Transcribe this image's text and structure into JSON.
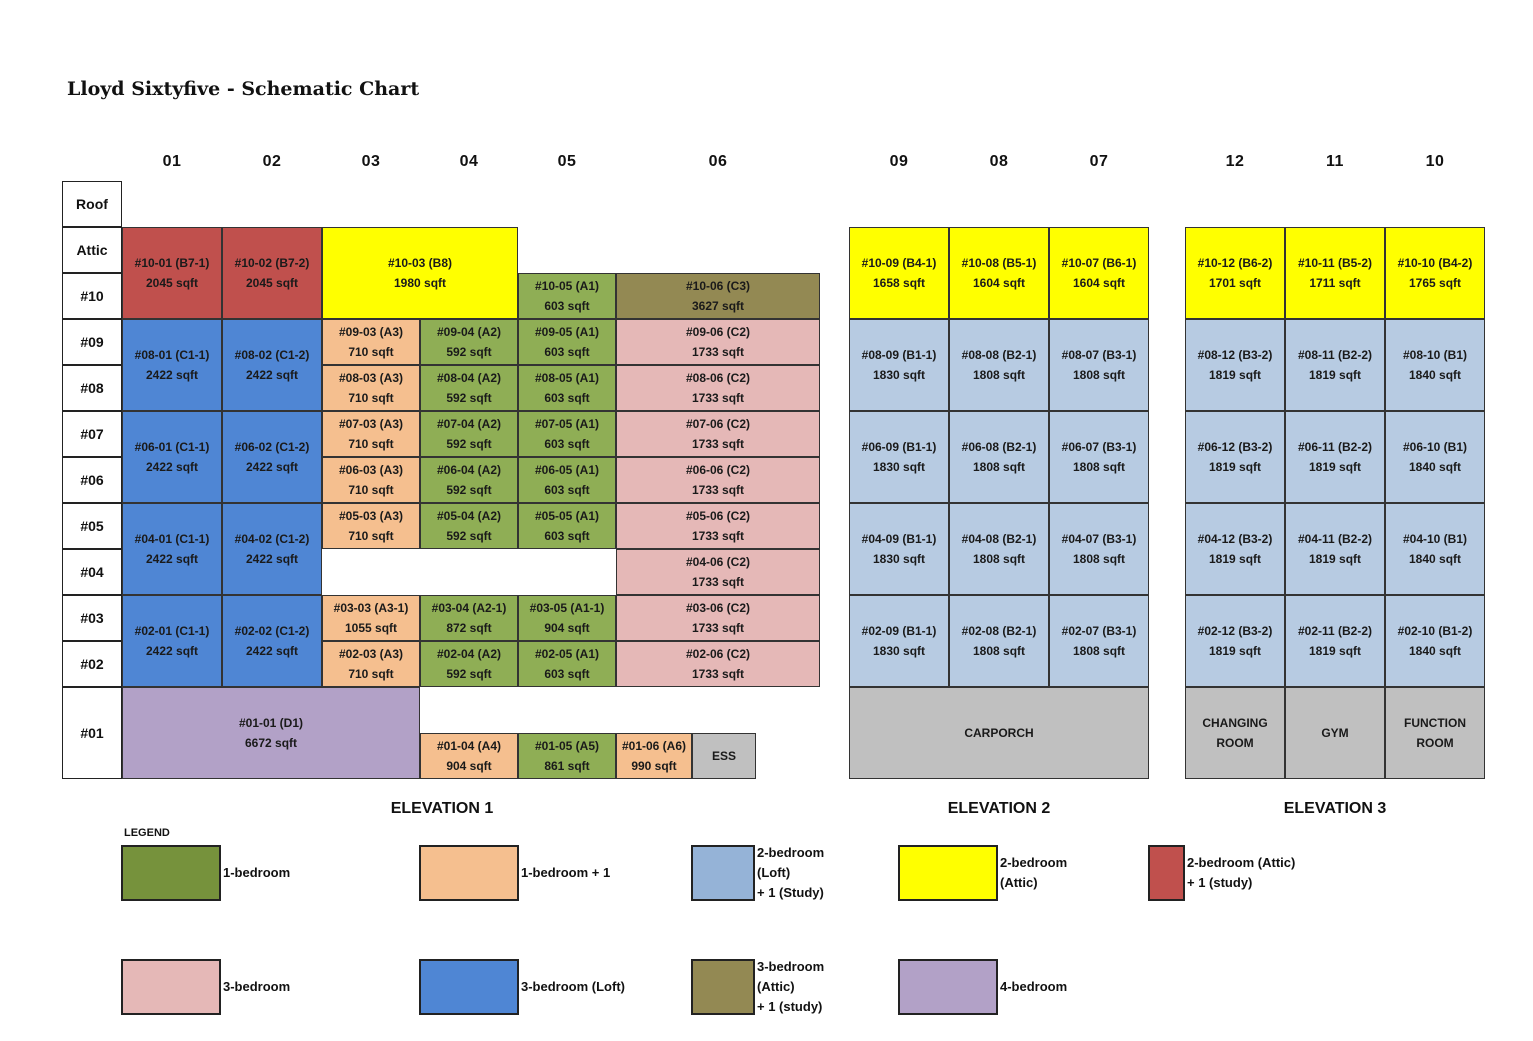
{
  "title": "Lloyd Sixtyfive - Schematic Chart",
  "colors": {
    "one_bedroom": "#8FAE55",
    "one_bedroom_plus1": "#F5BF8F",
    "two_bedroom_loft": "#B7CBE2",
    "two_bedroom_attic": "#FFFF00",
    "two_bedroom_attic_study": "#C0504D",
    "three_bedroom": "#E5B8B7",
    "three_bedroom_loft": "#4F86D4",
    "three_bedroom_attic_study": "#938953",
    "four_bedroom": "#B2A1C7",
    "facility": "#C0C0C0",
    "legend_one_bedroom": "#76923C",
    "legend_two_bedroom_loft": "#95B3D7"
  },
  "column_headers": [
    "01",
    "02",
    "03",
    "04",
    "05",
    "06",
    "09",
    "08",
    "07",
    "12",
    "11",
    "10"
  ],
  "row_labels": [
    "Roof",
    "Attic",
    "#10",
    "#09",
    "#08",
    "#07",
    "#06",
    "#05",
    "#04",
    "#03",
    "#02",
    "#01"
  ],
  "elevations": [
    "ELEVATION 1",
    "ELEVATION 2",
    "ELEVATION 3"
  ],
  "units": {
    "u10_01": {
      "l1": "#10-01 (B7-1)",
      "l2": "2045 sqft"
    },
    "u10_02": {
      "l1": "#10-02 (B7-2)",
      "l2": "2045 sqft"
    },
    "u10_03": {
      "l1": "#10-03 (B8)",
      "l2": "1980 sqft"
    },
    "u10_05": {
      "l1": "#10-05 (A1)",
      "l2": "603 sqft"
    },
    "u10_06": {
      "l1": "#10-06 (C3)",
      "l2": "3627 sqft"
    },
    "u08_01": {
      "l1": "#08-01 (C1-1)",
      "l2": "2422 sqft"
    },
    "u08_02": {
      "l1": "#08-02 (C1-2)",
      "l2": "2422 sqft"
    },
    "u06_01": {
      "l1": "#06-01 (C1-1)",
      "l2": "2422 sqft"
    },
    "u06_02": {
      "l1": "#06-02 (C1-2)",
      "l2": "2422 sqft"
    },
    "u04_01": {
      "l1": "#04-01 (C1-1)",
      "l2": "2422 sqft"
    },
    "u04_02": {
      "l1": "#04-02 (C1-2)",
      "l2": "2422 sqft"
    },
    "u02_01": {
      "l1": "#02-01 (C1-1)",
      "l2": "2422 sqft"
    },
    "u02_02": {
      "l1": "#02-02 (C1-2)",
      "l2": "2422 sqft"
    },
    "u09_03": {
      "l1": "#09-03 (A3)",
      "l2": "710 sqft"
    },
    "u09_04": {
      "l1": "#09-04 (A2)",
      "l2": "592 sqft"
    },
    "u09_05": {
      "l1": "#09-05 (A1)",
      "l2": "603 sqft"
    },
    "u09_06": {
      "l1": "#09-06 (C2)",
      "l2": "1733 sqft"
    },
    "u08_03": {
      "l1": "#08-03 (A3)",
      "l2": "710 sqft"
    },
    "u08_04": {
      "l1": "#08-04 (A2)",
      "l2": "592 sqft"
    },
    "u08_05": {
      "l1": "#08-05 (A1)",
      "l2": "603 sqft"
    },
    "u08_06": {
      "l1": "#08-06 (C2)",
      "l2": "1733 sqft"
    },
    "u07_03": {
      "l1": "#07-03 (A3)",
      "l2": "710 sqft"
    },
    "u07_04": {
      "l1": "#07-04 (A2)",
      "l2": "592 sqft"
    },
    "u07_05": {
      "l1": "#07-05 (A1)",
      "l2": "603 sqft"
    },
    "u07_06": {
      "l1": "#07-06 (C2)",
      "l2": "1733 sqft"
    },
    "u06_03": {
      "l1": "#06-03 (A3)",
      "l2": "710 sqft"
    },
    "u06_04": {
      "l1": "#06-04 (A2)",
      "l2": "592 sqft"
    },
    "u06_05": {
      "l1": "#06-05 (A1)",
      "l2": "603 sqft"
    },
    "u06_06": {
      "l1": "#06-06 (C2)",
      "l2": "1733 sqft"
    },
    "u05_03": {
      "l1": "#05-03 (A3)",
      "l2": "710 sqft"
    },
    "u05_04": {
      "l1": "#05-04 (A2)",
      "l2": "592 sqft"
    },
    "u05_05": {
      "l1": "#05-05 (A1)",
      "l2": "603 sqft"
    },
    "u05_06": {
      "l1": "#05-06 (C2)",
      "l2": "1733 sqft"
    },
    "u04_06": {
      "l1": "#04-06 (C2)",
      "l2": "1733 sqft"
    },
    "u03_03": {
      "l1": "#03-03 (A3-1)",
      "l2": "1055 sqft"
    },
    "u03_04": {
      "l1": "#03-04 (A2-1)",
      "l2": "872 sqft"
    },
    "u03_05": {
      "l1": "#03-05 (A1-1)",
      "l2": "904 sqft"
    },
    "u03_06": {
      "l1": "#03-06 (C2)",
      "l2": "1733 sqft"
    },
    "u02_03": {
      "l1": "#02-03 (A3)",
      "l2": "710 sqft"
    },
    "u02_04": {
      "l1": "#02-04 (A2)",
      "l2": "592 sqft"
    },
    "u02_05": {
      "l1": "#02-05 (A1)",
      "l2": "603 sqft"
    },
    "u02_06": {
      "l1": "#02-06 (C2)",
      "l2": "1733 sqft"
    },
    "u01_01": {
      "l1": "#01-01 (D1)",
      "l2": "6672 sqft"
    },
    "u01_04": {
      "l1": "#01-04 (A4)",
      "l2": "904 sqft"
    },
    "u01_05": {
      "l1": "#01-05 (A5)",
      "l2": "861 sqft"
    },
    "u01_06": {
      "l1": "#01-06 (A6)",
      "l2": "990 sqft"
    },
    "ess": {
      "l1": "ESS"
    },
    "u10_09": {
      "l1": "#10-09 (B4-1)",
      "l2": "1658 sqft"
    },
    "u10_08": {
      "l1": "#10-08 (B5-1)",
      "l2": "1604 sqft"
    },
    "u10_07": {
      "l1": "#10-07 (B6-1)",
      "l2": "1604 sqft"
    },
    "u08_09": {
      "l1": "#08-09 (B1-1)",
      "l2": "1830 sqft"
    },
    "u08_08": {
      "l1": "#08-08 (B2-1)",
      "l2": "1808 sqft"
    },
    "u08_07": {
      "l1": "#08-07 (B3-1)",
      "l2": "1808 sqft"
    },
    "u06_09": {
      "l1": "#06-09 (B1-1)",
      "l2": "1830 sqft"
    },
    "u06_08": {
      "l1": "#06-08 (B2-1)",
      "l2": "1808 sqft"
    },
    "u06_07": {
      "l1": "#06-07 (B3-1)",
      "l2": "1808 sqft"
    },
    "u04_09": {
      "l1": "#04-09 (B1-1)",
      "l2": "1830 sqft"
    },
    "u04_08": {
      "l1": "#04-08 (B2-1)",
      "l2": "1808 sqft"
    },
    "u04_07": {
      "l1": "#04-07 (B3-1)",
      "l2": "1808 sqft"
    },
    "u02_09": {
      "l1": "#02-09 (B1-1)",
      "l2": "1830 sqft"
    },
    "u02_08": {
      "l1": "#02-08 (B2-1)",
      "l2": "1808 sqft"
    },
    "u02_07": {
      "l1": "#02-07 (B3-1)",
      "l2": "1808 sqft"
    },
    "carporch": {
      "l1": "CARPORCH"
    },
    "u10_12": {
      "l1": "#10-12 (B6-2)",
      "l2": "1701 sqft"
    },
    "u10_11": {
      "l1": "#10-11 (B5-2)",
      "l2": "1711 sqft"
    },
    "u10_10": {
      "l1": "#10-10 (B4-2)",
      "l2": "1765 sqft"
    },
    "u08_12": {
      "l1": "#08-12 (B3-2)",
      "l2": "1819 sqft"
    },
    "u08_11": {
      "l1": "#08-11 (B2-2)",
      "l2": "1819 sqft"
    },
    "u08_10": {
      "l1": "#08-10 (B1)",
      "l2": "1840 sqft"
    },
    "u06_12": {
      "l1": "#06-12 (B3-2)",
      "l2": "1819 sqft"
    },
    "u06_11": {
      "l1": "#06-11 (B2-2)",
      "l2": "1819 sqft"
    },
    "u06_10": {
      "l1": "#06-10 (B1)",
      "l2": "1840 sqft"
    },
    "u04_12": {
      "l1": "#04-12 (B3-2)",
      "l2": "1819 sqft"
    },
    "u04_11": {
      "l1": "#04-11 (B2-2)",
      "l2": "1819 sqft"
    },
    "u04_10": {
      "l1": "#04-10 (B1)",
      "l2": "1840 sqft"
    },
    "u02_12": {
      "l1": "#02-12 (B3-2)",
      "l2": "1819 sqft"
    },
    "u02_11": {
      "l1": "#02-11 (B2-2)",
      "l2": "1819 sqft"
    },
    "u02_10": {
      "l1": "#02-10 (B1-2)",
      "l2": "1840 sqft"
    },
    "changing": {
      "l1": "CHANGING",
      "l2": "ROOM"
    },
    "gym": {
      "l1": "GYM"
    },
    "function": {
      "l1": "FUNCTION",
      "l2": "ROOM"
    }
  },
  "legend": {
    "label": "LEGEND",
    "items": [
      {
        "lines": [
          "1-bedroom"
        ]
      },
      {
        "lines": [
          "1-bedroom + 1"
        ]
      },
      {
        "lines": [
          "2-bedroom",
          "(Loft)",
          "+ 1 (Study)"
        ]
      },
      {
        "lines": [
          "2-bedroom",
          "(Attic)"
        ]
      },
      {
        "lines": [
          "2-bedroom (Attic)",
          "+ 1 (study)"
        ]
      },
      {
        "lines": [
          "3-bedroom"
        ]
      },
      {
        "lines": [
          "3-bedroom (Loft)"
        ]
      },
      {
        "lines": [
          "3-bedroom",
          "(Attic)",
          "+ 1 (study)"
        ]
      },
      {
        "lines": [
          "4-bedroom"
        ]
      }
    ]
  }
}
